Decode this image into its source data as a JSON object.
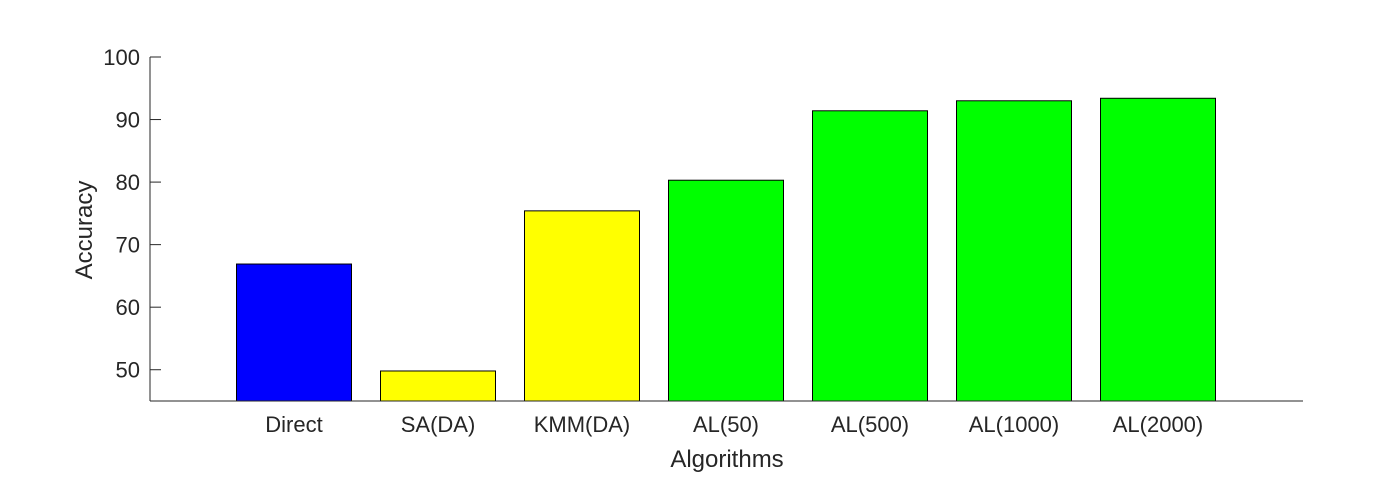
{
  "chart_data": {
    "type": "bar",
    "title": "",
    "xlabel": "Algorithms",
    "ylabel": "Accuracy",
    "ylim": [
      45,
      100
    ],
    "yticks": [
      50,
      60,
      70,
      80,
      90,
      100
    ],
    "grid": false,
    "legend": "none",
    "categories": [
      "Direct",
      "SA(DA)",
      "KMM(DA)",
      "AL(50)",
      "AL(500)",
      "AL(1000)",
      "AL(2000)"
    ],
    "values": [
      66.9,
      49.8,
      75.4,
      80.3,
      91.4,
      93.0,
      93.4
    ],
    "colors": [
      "#0000ff",
      "#ffff00",
      "#ffff00",
      "#00ff00",
      "#00ff00",
      "#00ff00",
      "#00ff00"
    ]
  }
}
